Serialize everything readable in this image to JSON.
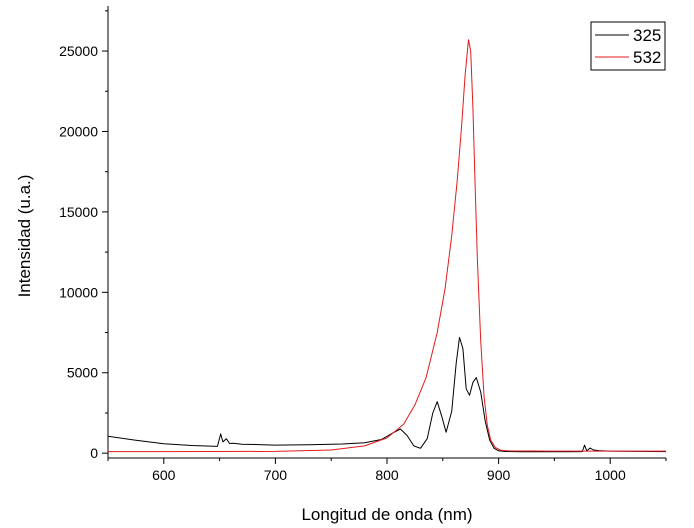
{
  "chart_data": {
    "type": "line",
    "title": "",
    "xlabel": "Longitud de onda (nm)",
    "ylabel": "Intensidad (u.a.)",
    "xlim": [
      550,
      1050
    ],
    "ylim": [
      -300,
      27800
    ],
    "x_ticks": [
      600,
      700,
      800,
      900,
      1000
    ],
    "y_ticks": [
      0,
      5000,
      10000,
      15000,
      20000,
      25000
    ],
    "x_tick_labels": [
      "600",
      "700",
      "800",
      "900",
      "1000"
    ],
    "y_tick_labels": [
      "0",
      "5000",
      "10000",
      "15000",
      "20000",
      "25000"
    ],
    "grid": false,
    "legend_position": "top-right",
    "series": [
      {
        "name": "325",
        "color": "#000000",
        "x": [
          550,
          575,
          600,
          625,
          648,
          651,
          653,
          656,
          659,
          662,
          670,
          700,
          730,
          760,
          780,
          795,
          805,
          812,
          818,
          824,
          830,
          836,
          841,
          845,
          849,
          853,
          858,
          862,
          865,
          868,
          871,
          874,
          877,
          880,
          884,
          888,
          892,
          896,
          900,
          905,
          920,
          940,
          960,
          975,
          977,
          979,
          982,
          985,
          990,
          1000,
          1050
        ],
        "y": [
          1050,
          800,
          580,
          480,
          420,
          1200,
          700,
          900,
          600,
          620,
          560,
          500,
          520,
          570,
          650,
          850,
          1250,
          1500,
          1100,
          450,
          300,
          900,
          2500,
          3200,
          2300,
          1300,
          2600,
          5600,
          7200,
          6500,
          4000,
          3600,
          4400,
          4700,
          3800,
          2000,
          800,
          300,
          150,
          110,
          90,
          85,
          90,
          100,
          500,
          140,
          320,
          200,
          160,
          130,
          100
        ]
      },
      {
        "name": "532",
        "color": "#e41a1c",
        "x": [
          550,
          600,
          700,
          750,
          780,
          800,
          815,
          825,
          835,
          845,
          852,
          858,
          863,
          867,
          870,
          873,
          875,
          877,
          879,
          881,
          884,
          887,
          890,
          893,
          897,
          902,
          910,
          950,
          1000,
          1050
        ],
        "y": [
          100,
          100,
          110,
          200,
          450,
          950,
          1800,
          3000,
          4700,
          7500,
          10200,
          13500,
          17000,
          20500,
          23500,
          25700,
          25000,
          21500,
          16500,
          12000,
          7000,
          3500,
          1700,
          800,
          350,
          180,
          140,
          130,
          130,
          130
        ]
      }
    ]
  }
}
